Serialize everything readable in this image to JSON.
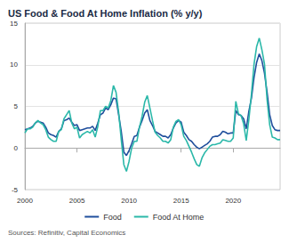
{
  "chart_data": {
    "type": "line",
    "title": "US Food & Food At Home Inflation (% y/y)",
    "source": "Sources: Refinitiv, Capital Economics",
    "x": [
      2000,
      2000.25,
      2000.5,
      2000.75,
      2001,
      2001.25,
      2001.5,
      2001.75,
      2002,
      2002.25,
      2002.5,
      2002.75,
      2003,
      2003.25,
      2003.5,
      2003.75,
      2004,
      2004.25,
      2004.5,
      2004.75,
      2005,
      2005.25,
      2005.5,
      2005.75,
      2006,
      2006.25,
      2006.5,
      2006.75,
      2007,
      2007.25,
      2007.5,
      2007.75,
      2008,
      2008.25,
      2008.5,
      2008.75,
      2009,
      2009.25,
      2009.5,
      2009.75,
      2010,
      2010.25,
      2010.5,
      2010.75,
      2011,
      2011.25,
      2011.5,
      2011.75,
      2012,
      2012.25,
      2012.5,
      2012.75,
      2013,
      2013.25,
      2013.5,
      2013.75,
      2014,
      2014.25,
      2014.5,
      2014.75,
      2015,
      2015.25,
      2015.5,
      2015.75,
      2016,
      2016.25,
      2016.5,
      2016.75,
      2017,
      2017.25,
      2017.5,
      2017.75,
      2018,
      2018.25,
      2018.5,
      2018.75,
      2019,
      2019.25,
      2019.5,
      2019.75,
      2020,
      2020.25,
      2020.5,
      2020.75,
      2021,
      2021.25,
      2021.5,
      2021.75,
      2022,
      2022.25,
      2022.5,
      2022.75,
      2023,
      2023.25,
      2023.5,
      2023.75,
      2024,
      2024.25,
      2024.5
    ],
    "series": [
      {
        "name": "Food",
        "color": "#1f4e9c",
        "values": [
          2.2,
          2.3,
          2.4,
          2.6,
          3.0,
          3.2,
          3.1,
          3.0,
          2.5,
          1.8,
          1.6,
          1.5,
          1.3,
          2.0,
          2.3,
          3.3,
          3.4,
          3.6,
          3.1,
          2.7,
          2.8,
          2.1,
          2.2,
          2.3,
          2.4,
          2.4,
          2.6,
          2.1,
          3.0,
          4.0,
          4.2,
          4.8,
          4.6,
          5.2,
          6.0,
          5.9,
          4.0,
          2.0,
          -0.5,
          -0.9,
          -0.3,
          0.5,
          1.4,
          1.5,
          2.5,
          3.3,
          4.2,
          4.6,
          3.3,
          2.7,
          2.0,
          1.8,
          1.6,
          1.4,
          1.4,
          1.2,
          1.6,
          2.4,
          3.0,
          3.3,
          3.1,
          1.9,
          1.5,
          1.0,
          0.8,
          0.4,
          0.1,
          -0.1,
          0.1,
          0.3,
          0.5,
          0.8,
          1.3,
          1.4,
          1.4,
          1.6,
          2.0,
          1.9,
          1.7,
          1.8,
          1.8,
          4.5,
          4.0,
          3.9,
          3.5,
          2.3,
          4.4,
          6.0,
          8.5,
          10.3,
          11.3,
          10.5,
          9.0,
          6.7,
          4.0,
          2.7,
          2.2,
          2.1,
          2.1
        ]
      },
      {
        "name": "Food At Home",
        "color": "#2bb8a9",
        "values": [
          1.8,
          2.3,
          2.3,
          2.5,
          3.0,
          3.3,
          3.0,
          2.8,
          2.2,
          1.3,
          1.0,
          0.8,
          0.8,
          2.0,
          2.2,
          3.5,
          4.0,
          4.5,
          3.0,
          2.3,
          2.5,
          1.2,
          1.6,
          1.8,
          2.0,
          1.8,
          2.2,
          1.3,
          2.6,
          4.5,
          4.5,
          5.0,
          4.8,
          5.7,
          7.5,
          6.7,
          4.3,
          1.0,
          -2.0,
          -2.8,
          -1.6,
          0.0,
          0.8,
          0.8,
          2.5,
          3.8,
          5.5,
          6.3,
          4.8,
          3.3,
          1.9,
          1.5,
          1.2,
          0.8,
          0.8,
          0.6,
          1.0,
          2.5,
          3.2,
          3.4,
          2.8,
          1.4,
          0.9,
          0.2,
          -0.5,
          -1.3,
          -2.0,
          -2.2,
          -1.2,
          -0.6,
          -0.2,
          0.2,
          0.4,
          0.4,
          0.5,
          0.6,
          1.0,
          0.9,
          0.8,
          0.8,
          1.2,
          5.6,
          4.1,
          3.9,
          2.9,
          0.9,
          3.4,
          6.5,
          10.1,
          12.2,
          13.2,
          11.8,
          10.1,
          5.8,
          2.8,
          1.3,
          1.2,
          1.0,
          1.0
        ]
      }
    ],
    "xlim": [
      2000,
      2024.5
    ],
    "xticks": [
      2000,
      2005,
      2010,
      2015,
      2020
    ],
    "ylim": [
      -5,
      15
    ],
    "yticks": [
      -5,
      0,
      5,
      10,
      15
    ],
    "grid": true,
    "legend": "bottom"
  }
}
